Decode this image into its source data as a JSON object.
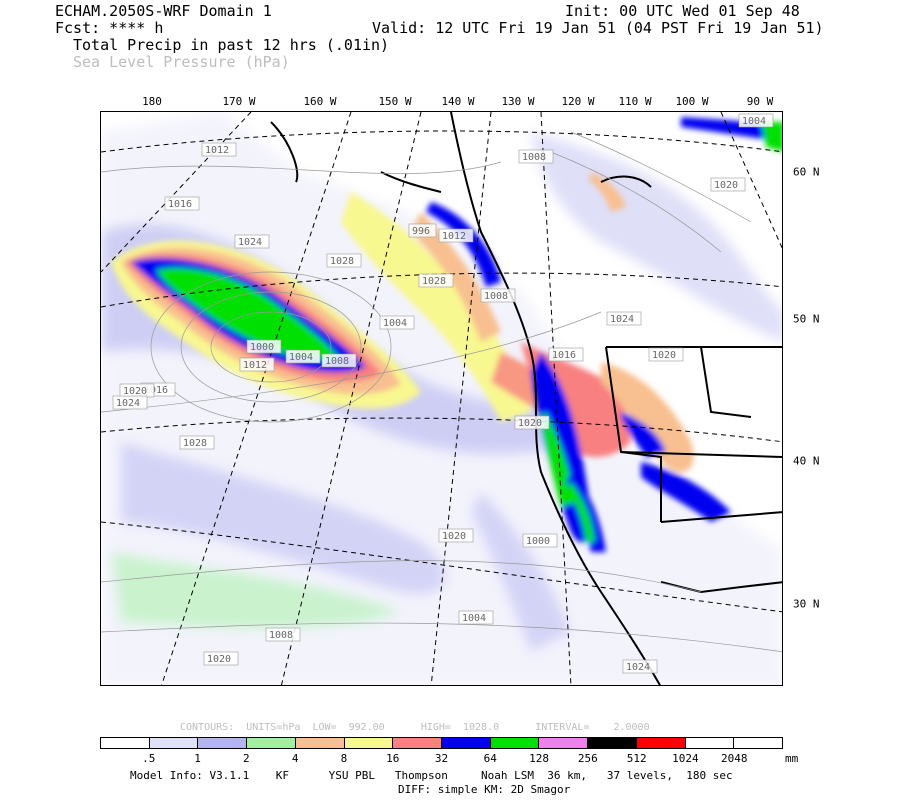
{
  "header": {
    "model": "ECHAM.2050S-WRF Domain 1",
    "init": "Init: 00 UTC Wed 01 Sep 48",
    "fcst": "Fcst: **** h",
    "valid": "Valid: 12 UTC Fri 19 Jan 51 (04 PST Fri 19 Jan 51)",
    "field1": "Total Precip in past 12 hrs (.01in)",
    "field2": "Sea Level Pressure (hPa)"
  },
  "lon_labels": [
    "180",
    "170 W",
    "160 W",
    "150 W",
    "140 W",
    "130 W",
    "120 W",
    "110 W",
    "100 W",
    "90 W"
  ],
  "lat_labels": [
    "60 N",
    "50 N",
    "40 N",
    "30 N"
  ],
  "pressure_labels": [
    "1004",
    "1008",
    "1012",
    "1016",
    "1020",
    "1024",
    "1028",
    "996",
    "1000",
    "1004",
    "1008",
    "1012",
    "1016",
    "1020",
    "1024",
    "1028",
    "1020",
    "1000",
    "1004",
    "1008",
    "1020",
    "1024",
    "1028",
    "1012",
    "1008",
    "1004",
    "1016",
    "1020",
    "1024",
    "1020"
  ],
  "contour_info": "CONTOURS:  UNITS=hPa  LOW=  992.00      HIGH=  1028.0      INTERVAL=    2.0000",
  "colorbar": {
    "colors": [
      "#ffffff",
      "#e0e0f8",
      "#b4b4f0",
      "#a0f0a0",
      "#f8c090",
      "#f8f890",
      "#f88080",
      "#0000f0",
      "#00e000",
      "#f080f0",
      "#000000",
      "#ff0000",
      "#ffffff",
      "#ffffff"
    ],
    "ticks": [
      ".5",
      "1",
      "2",
      "4",
      "8",
      "16",
      "32",
      "64",
      "128",
      "256",
      "512",
      "1024",
      "2048"
    ],
    "units": "mm"
  },
  "footer": {
    "line1": "Model Info: V3.1.1    KF      YSU PBL   Thompson     Noah LSM  36 km,   37 levels,  180 sec",
    "line2": "DIFF: simple KM: 2D Smagor"
  }
}
